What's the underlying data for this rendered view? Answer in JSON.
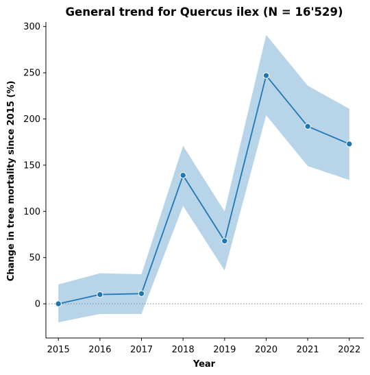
{
  "chart_data": {
    "type": "line",
    "title": "General trend for Quercus ilex  (N = 16'529)",
    "xlabel": "Year",
    "ylabel": "Change in tree mortality since 2015 (%)",
    "x": [
      2015,
      2016,
      2017,
      2018,
      2019,
      2020,
      2021,
      2022
    ],
    "x_tick_labels": [
      "2015",
      "2016",
      "2017",
      "2018",
      "2019",
      "2020",
      "2021",
      "2022"
    ],
    "xlim": [
      2014.7,
      2022.35
    ],
    "ylim": [
      -37,
      305
    ],
    "y_ticks": [
      0,
      50,
      100,
      150,
      200,
      250,
      300
    ],
    "y_tick_labels": [
      "0",
      "50",
      "100",
      "150",
      "200",
      "250",
      "300"
    ],
    "grid": false,
    "series": [
      {
        "values": [
          0,
          10,
          11,
          139,
          68,
          247,
          192,
          173
        ],
        "ci_lower": [
          -20,
          -11,
          -11,
          106,
          36,
          204,
          149,
          134
        ],
        "ci_upper": [
          21,
          33,
          32,
          171,
          100,
          291,
          236,
          211
        ],
        "color": "#1f77b4",
        "band_color": "#b8d4e8"
      }
    ],
    "reference_line": {
      "y": 0,
      "style": "dotted",
      "color": "#808080"
    }
  }
}
